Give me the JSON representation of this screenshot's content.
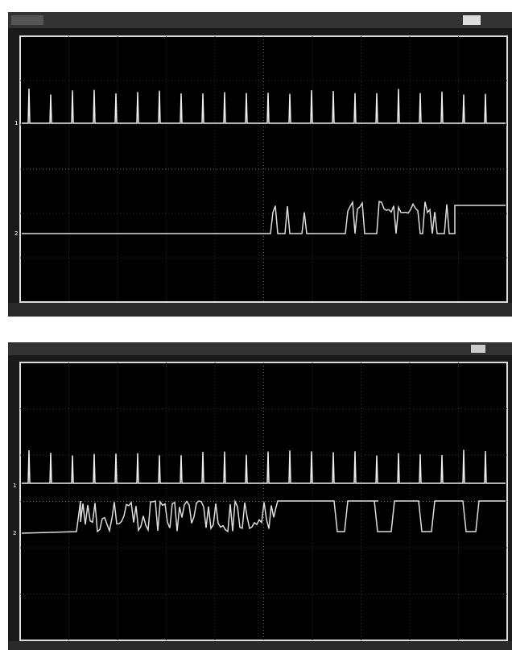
{
  "screens": [
    {
      "markers": [
        "1",
        "2"
      ]
    },
    {
      "markers": [
        "1",
        "2"
      ]
    }
  ]
}
